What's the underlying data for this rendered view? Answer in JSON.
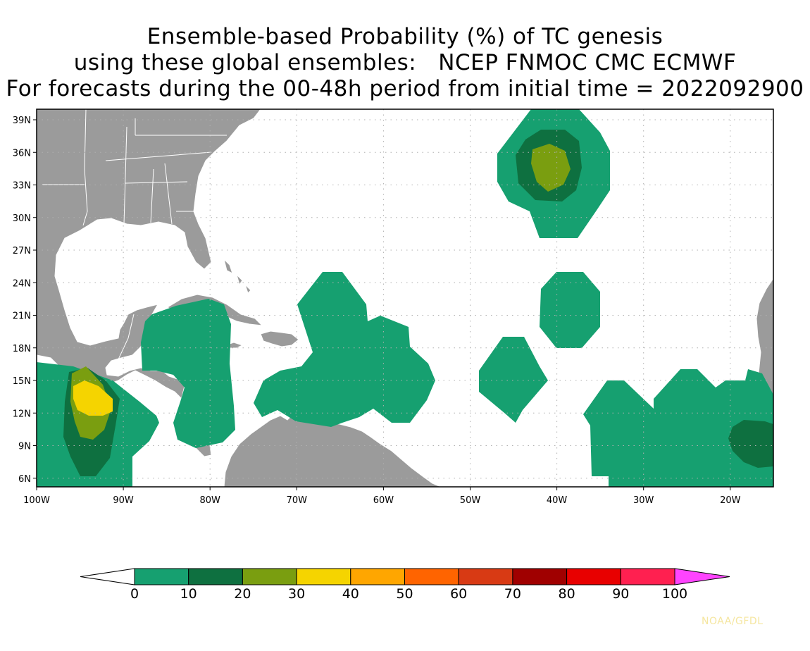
{
  "title": {
    "line1": "Ensemble-based Probability (%) of TC genesis",
    "line2": "using these global ensembles:   NCEP FNMOC CMC ECMWF",
    "line3": "For forecasts during the 00-48h period from initial time = 2022092900"
  },
  "map": {
    "lat_labels": [
      "39N",
      "36N",
      "33N",
      "30N",
      "27N",
      "24N",
      "21N",
      "18N",
      "15N",
      "12N",
      "9N",
      "6N"
    ],
    "lon_labels": [
      "100W",
      "90W",
      "80W",
      "70W",
      "60W",
      "50W",
      "40W",
      "30W",
      "20W"
    ],
    "colors": {
      "land": "#9b9b9b",
      "ocean": "#ffffff",
      "border": "#ffffff",
      "grid": "#b0b0b0"
    }
  },
  "legend": {
    "bins": [
      {
        "label": "0",
        "color": "#16a070"
      },
      {
        "label": "10",
        "color": "#0e7040"
      },
      {
        "label": "20",
        "color": "#7a9e10"
      },
      {
        "label": "30",
        "color": "#f5d400"
      },
      {
        "label": "40",
        "color": "#ffa600"
      },
      {
        "label": "50",
        "color": "#ff6400"
      },
      {
        "label": "60",
        "color": "#d83a14"
      },
      {
        "label": "70",
        "color": "#a00000"
      },
      {
        "label": "80",
        "color": "#e80000"
      },
      {
        "label": "90",
        "color": "#ff2050"
      }
    ],
    "last_label": "100",
    "under_color": "#ffffff",
    "over_color": "#ff44ff"
  },
  "credit": "NOAA/GFDL"
}
